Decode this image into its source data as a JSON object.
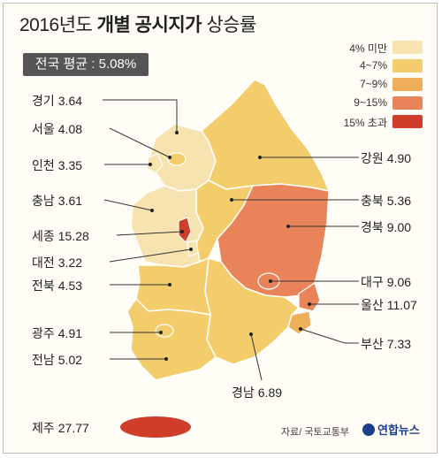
{
  "title": {
    "year": "2016년도",
    "bold": "개별 공시지가",
    "rest": "상승률"
  },
  "average": "전국 평균 : 5.08%",
  "legend": [
    {
      "label": "4% 미만",
      "color": "#f6e3b0"
    },
    {
      "label": "4~7%",
      "color": "#f3cd6b"
    },
    {
      "label": "7~9%",
      "color": "#eeae5a"
    },
    {
      "label": "9~15%",
      "color": "#e9845a"
    },
    {
      "label": "15% 초과",
      "color": "#cf3e2b"
    }
  ],
  "regions": [
    {
      "name": "경기",
      "value": "3.64"
    },
    {
      "name": "서울",
      "value": "4.08"
    },
    {
      "name": "인천",
      "value": "3.35"
    },
    {
      "name": "충남",
      "value": "3.61"
    },
    {
      "name": "세종",
      "value": "15.28"
    },
    {
      "name": "대전",
      "value": "3.22"
    },
    {
      "name": "전북",
      "value": "4.53"
    },
    {
      "name": "광주",
      "value": "4.91"
    },
    {
      "name": "전남",
      "value": "5.02"
    },
    {
      "name": "제주",
      "value": "27.77"
    },
    {
      "name": "강원",
      "value": "4.90"
    },
    {
      "name": "충북",
      "value": "5.36"
    },
    {
      "name": "경북",
      "value": "9.00"
    },
    {
      "name": "대구",
      "value": "9.06"
    },
    {
      "name": "울산",
      "value": "11.07"
    },
    {
      "name": "부산",
      "value": "7.33"
    },
    {
      "name": "경남",
      "value": "6.89"
    }
  ],
  "source": "자료/ 국토교통부",
  "brand": "연합뉴스"
}
